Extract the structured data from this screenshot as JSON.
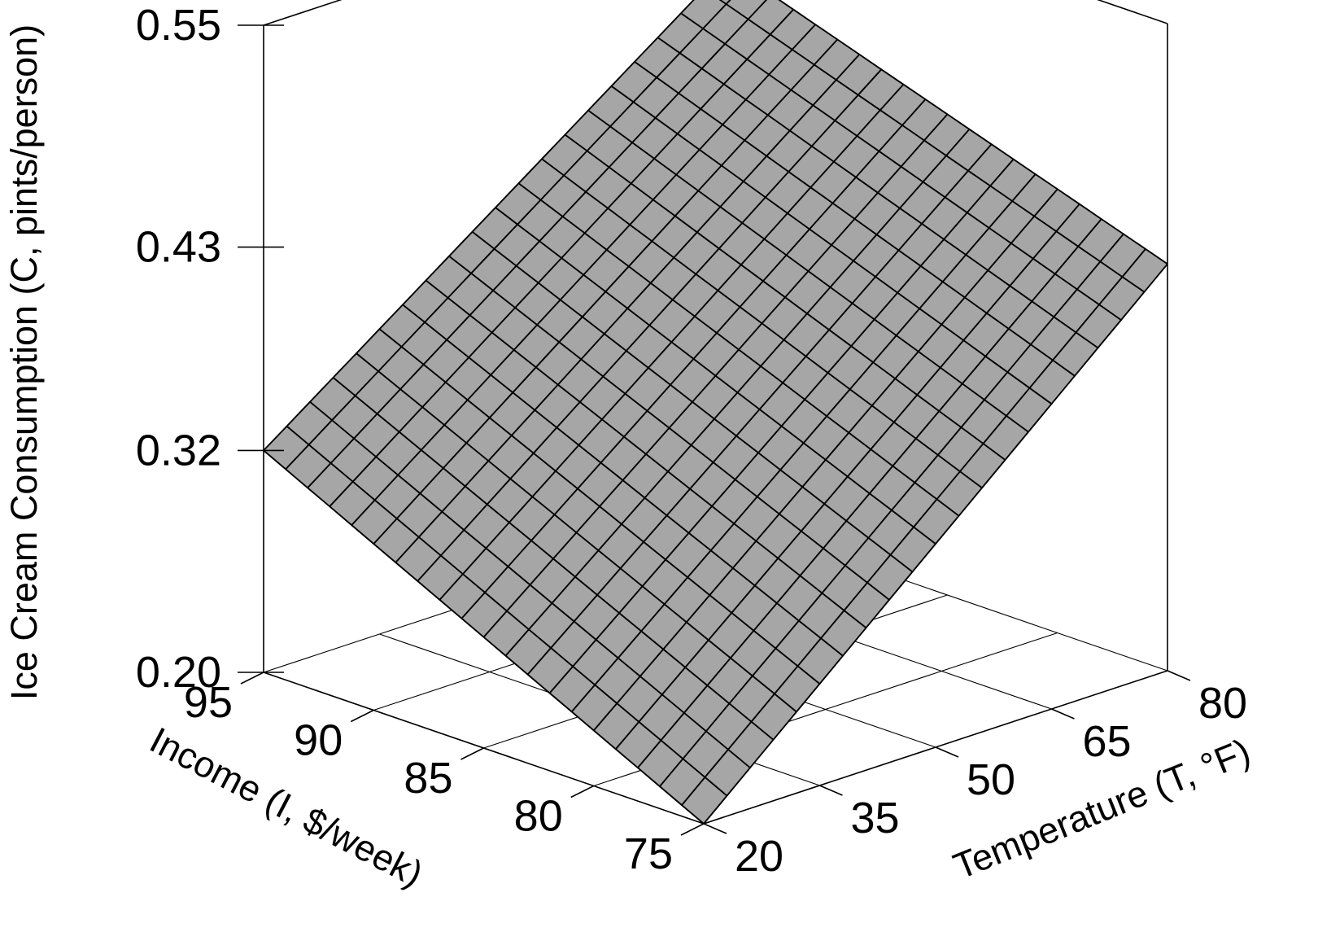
{
  "chart_data": {
    "type": "surface3d",
    "title": "",
    "zlabel": "Ice Cream Consumption (C, pints/person)",
    "xlabel": "Temperature (T, °F)",
    "ylabel": "Income (I, $/week)",
    "z_ticks": [
      "0.20",
      "0.32",
      "0.43",
      "0.55"
    ],
    "x_ticks": [
      "20",
      "35",
      "50",
      "65",
      "80"
    ],
    "y_ticks": [
      "75",
      "80",
      "85",
      "90",
      "95"
    ],
    "zlim": [
      0.2,
      0.55
    ],
    "xlim": [
      20,
      80
    ],
    "ylim": [
      75,
      95
    ],
    "surface_corners": [
      {
        "temperature": 20,
        "income": 75,
        "consumption": 0.2
      },
      {
        "temperature": 80,
        "income": 75,
        "consumption": 0.42
      },
      {
        "temperature": 20,
        "income": 95,
        "consumption": 0.32
      },
      {
        "temperature": 80,
        "income": 95,
        "consumption": 0.5
      }
    ],
    "mesh_divisions": 20,
    "surface_color": "#a6a6a6",
    "grid": true,
    "legend": "none"
  }
}
